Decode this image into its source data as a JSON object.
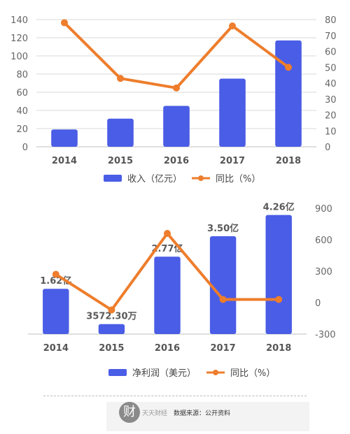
{
  "chart_data": [
    {
      "type": "bar",
      "categories": [
        "2014",
        "2015",
        "2016",
        "2017",
        "2018"
      ],
      "series": [
        {
          "name": "收入（亿元）",
          "type": "bar",
          "axis": "left",
          "values": [
            19,
            31,
            45,
            75,
            117
          ]
        },
        {
          "name": "同比（%）",
          "type": "line",
          "axis": "right",
          "values": [
            78,
            43,
            37,
            76,
            50
          ]
        }
      ],
      "ylim": [
        0,
        140
      ],
      "yticks": [
        0,
        20,
        40,
        60,
        80,
        100,
        120,
        140
      ],
      "y2lim": [
        0,
        80
      ],
      "y2ticks": [
        0,
        10,
        20,
        30,
        40,
        50,
        60,
        70,
        80
      ],
      "grid": true,
      "legend": "bottom",
      "colors": {
        "bar": "#4a5de6",
        "line": "#ee7d2c"
      }
    },
    {
      "type": "bar",
      "categories": [
        "2014",
        "2015",
        "2016",
        "2017",
        "2018"
      ],
      "series": [
        {
          "name": "净利润（美元）",
          "type": "bar",
          "axis": "left",
          "values": [
            1.62,
            0.357,
            2.77,
            3.5,
            4.26
          ],
          "labels": [
            "1.62亿",
            "3572.30万",
            "2.77亿",
            "3.50亿",
            "4.26亿"
          ]
        },
        {
          "name": "同比（%）",
          "type": "line",
          "axis": "right",
          "values": [
            270,
            -70,
            660,
            30,
            30
          ]
        }
      ],
      "ylim": [
        0,
        4.5
      ],
      "y2lim": [
        -300,
        900
      ],
      "y2ticks": [
        -300,
        0,
        300,
        600,
        900
      ],
      "grid": false,
      "legend": "bottom",
      "colors": {
        "bar": "#4a5de6",
        "line": "#ee7d2c"
      }
    }
  ],
  "footer": {
    "logo_glyph": "财",
    "logo_text": "天天财经",
    "source": "数据来源：公开资料"
  }
}
